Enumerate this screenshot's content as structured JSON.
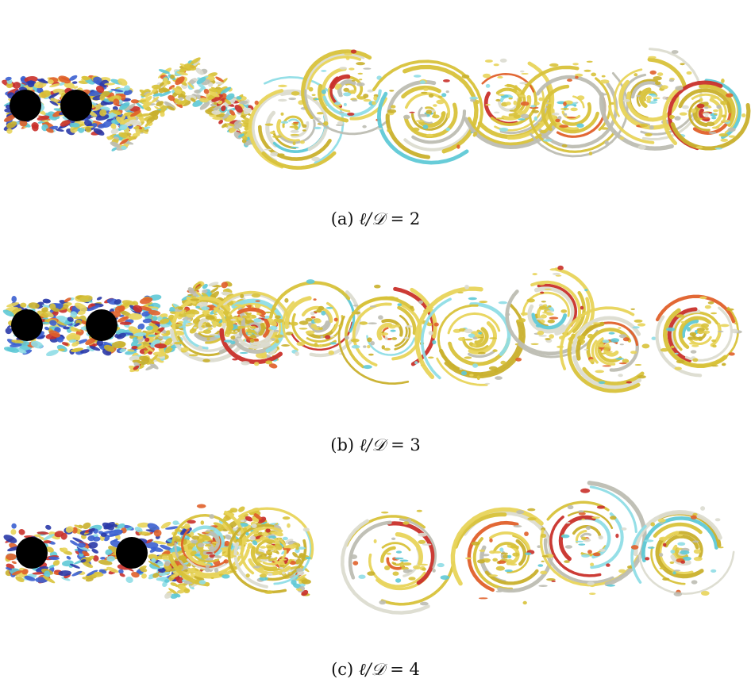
{
  "figure": {
    "panels": [
      {
        "caption_tag": "(a)",
        "caption_symbol": "ℓ/𝒟",
        "caption_equals": "=",
        "caption_value": "2"
      },
      {
        "caption_tag": "(b)",
        "caption_symbol": "ℓ/𝒟",
        "caption_equals": "=",
        "caption_value": "3"
      },
      {
        "caption_tag": "(c)",
        "caption_symbol": "ℓ/𝒟",
        "caption_equals": "=",
        "caption_value": "4"
      }
    ],
    "colors": {
      "cylinder": "#000000",
      "vortex_palette": [
        "#d8c23a",
        "#e8d45a",
        "#c9b02c",
        "#bdbdb2",
        "#dcdcd0",
        "#5fc9d6",
        "#8fdde6",
        "#e0602a",
        "#c9302a",
        "#2a3aa8",
        "#3b5fd0"
      ]
    }
  }
}
